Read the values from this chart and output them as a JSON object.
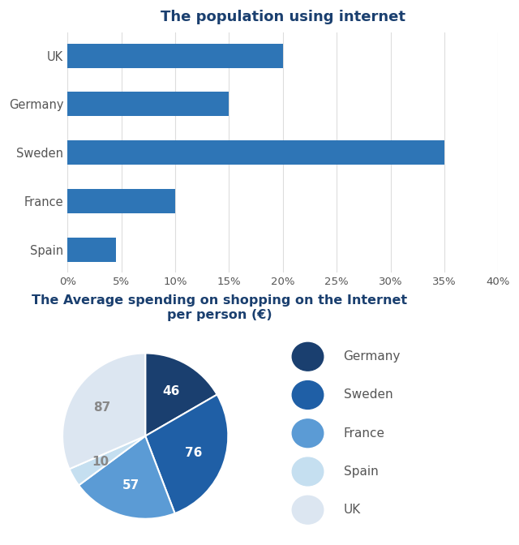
{
  "bar_title": "The population using internet",
  "bar_countries": [
    "UK",
    "Germany",
    "Sweden",
    "France",
    "Spain"
  ],
  "bar_values": [
    20,
    15,
    35,
    10,
    4.5
  ],
  "bar_color": "#2e75b6",
  "bar_xlim": [
    0,
    40
  ],
  "bar_xticks": [
    0,
    5,
    10,
    15,
    20,
    25,
    30,
    35,
    40
  ],
  "bar_xtick_labels": [
    "0%",
    "5%",
    "10%",
    "15%",
    "20%",
    "25%",
    "30%",
    "35%",
    "40%"
  ],
  "pie_title": "The Average spending on shopping on the Internet\nper person (€)",
  "pie_labels": [
    "Germany",
    "Sweden",
    "France",
    "Spain",
    "UK"
  ],
  "pie_values": [
    46,
    76,
    57,
    10,
    87
  ],
  "pie_colors": [
    "#1a3f6f",
    "#1f5fa6",
    "#5b9bd5",
    "#c5dff0",
    "#dce6f1"
  ],
  "background_color": "#ffffff",
  "title_color": "#1a3f6f",
  "bar_label_color": "#555555",
  "grid_color": "#dddddd"
}
